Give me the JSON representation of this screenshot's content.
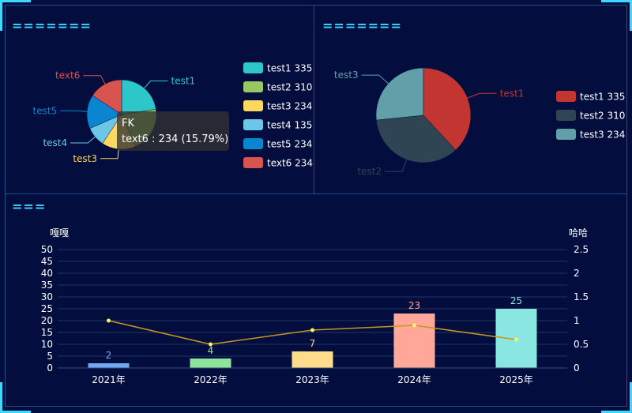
{
  "panels": {
    "top_left_title": "=======",
    "top_right_title": "=======",
    "bottom_title": "==="
  },
  "tooltip": {
    "title": "FK",
    "text": "text6 : 234 (15.79%)"
  },
  "chart_data": [
    {
      "type": "pie",
      "slices": [
        {
          "name": "test1",
          "value": 335,
          "color": "#2ec7c9",
          "legend": "test1 335"
        },
        {
          "name": "test2",
          "value": 310,
          "color": "#9ac860",
          "legend": "test2 310"
        },
        {
          "name": "test3",
          "value": 234,
          "color": "#fcd85e",
          "legend": "test3 234"
        },
        {
          "name": "test4",
          "value": 135,
          "color": "#6bc6e8",
          "legend": "test4 135"
        },
        {
          "name": "test5",
          "value": 234,
          "color": "#0a86d0",
          "legend": "test5 234"
        },
        {
          "name": "text6",
          "value": 234,
          "color": "#d9534f",
          "legend": "text6 234"
        }
      ],
      "outside_labels": [
        "test1",
        "test3",
        "test4",
        "test5",
        "text6"
      ],
      "legend_placement": "right"
    },
    {
      "type": "pie",
      "slices": [
        {
          "name": "test1",
          "value": 335,
          "color": "#c23531",
          "legend": "test1 335"
        },
        {
          "name": "test2",
          "value": 310,
          "color": "#2f4554",
          "legend": "test2 310"
        },
        {
          "name": "test3",
          "value": 234,
          "color": "#61a0a8",
          "legend": "test3 234"
        }
      ],
      "outside_labels": [
        "test1",
        "test2",
        "test3"
      ],
      "legend_placement": "right"
    },
    {
      "type": "bar",
      "categories": [
        "2021年",
        "2022年",
        "2023年",
        "2024年",
        "2025年"
      ],
      "values": [
        2,
        4,
        7,
        23,
        25
      ],
      "bar_colors": [
        "#6fa8f2",
        "#8ee49a",
        "#ffdc8a",
        "#ffa899",
        "#8ae6e0"
      ],
      "label_colors": [
        "#6fa8f2",
        "#8ee49a",
        "#ffdc8a",
        "#ffa899",
        "#8ae6e0"
      ],
      "line_values": [
        1,
        0.5,
        0.8,
        0.9,
        0.6
      ],
      "line_color": "#c8961e",
      "point_color": "#f5f56a",
      "ylabel": "嘎嘎",
      "ylabel_right": "哈哈",
      "ylim": [
        0,
        50
      ],
      "yticks": [
        0,
        5,
        10,
        15,
        20,
        25,
        30,
        35,
        40,
        45,
        50
      ],
      "ylim_right": [
        0,
        2.5
      ],
      "yticks_right": [
        0,
        0.5,
        1,
        1.5,
        2,
        2.5
      ],
      "grid": true
    }
  ]
}
